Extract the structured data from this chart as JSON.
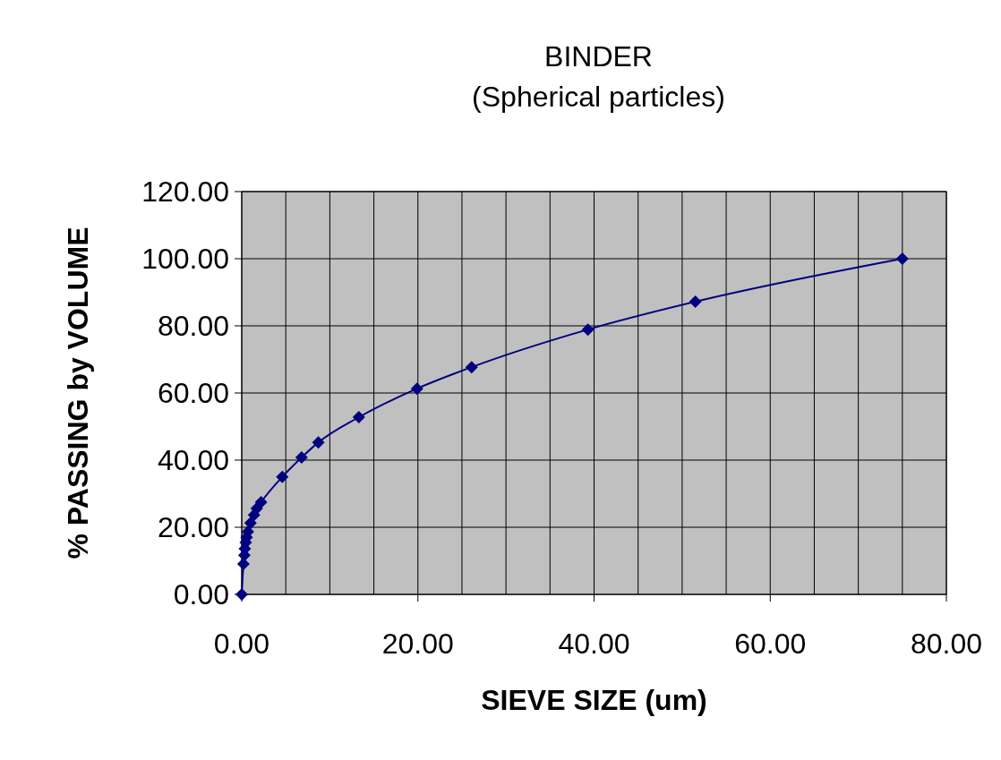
{
  "chart_data": {
    "type": "line",
    "title": "BINDER",
    "subtitle": "(Spherical particles)",
    "xlabel": "SIEVE SIZE (um)",
    "ylabel": "% PASSING by VOLUME",
    "x": [
      0,
      0.2,
      0.3,
      0.35,
      0.45,
      0.55,
      0.7,
      1.0,
      1.4,
      1.7,
      2.2,
      4.6,
      6.8,
      8.7,
      13.3,
      19.9,
      26.1,
      39.3,
      51.5,
      75
    ],
    "series": [
      {
        "color": "#000080",
        "values": [
          0,
          9.1,
          11.7,
          13.6,
          15.5,
          17,
          18.7,
          21.3,
          23.7,
          25.6,
          27.5,
          35,
          40.8,
          45.3,
          52.8,
          61.3,
          67.7,
          78.9,
          87.2,
          100
        ]
      }
    ],
    "xlim": [
      0,
      80
    ],
    "ylim": [
      0,
      120
    ],
    "xticks": [
      {
        "value": 0,
        "label": "0.00"
      },
      {
        "value": 20,
        "label": "20.00"
      },
      {
        "value": 40,
        "label": "40.00"
      },
      {
        "value": 60,
        "label": "60.00"
      },
      {
        "value": 80,
        "label": "80.00"
      }
    ],
    "yticks": [
      {
        "value": 0,
        "label": "0.00"
      },
      {
        "value": 20,
        "label": "20.00"
      },
      {
        "value": 40,
        "label": "40.00"
      },
      {
        "value": 60,
        "label": "60.00"
      },
      {
        "value": 80,
        "label": "80.00"
      },
      {
        "value": 100,
        "label": "100.00"
      },
      {
        "value": 120,
        "label": "120.00"
      }
    ],
    "grid": true,
    "marker": "diamond",
    "line_style": "solid"
  }
}
